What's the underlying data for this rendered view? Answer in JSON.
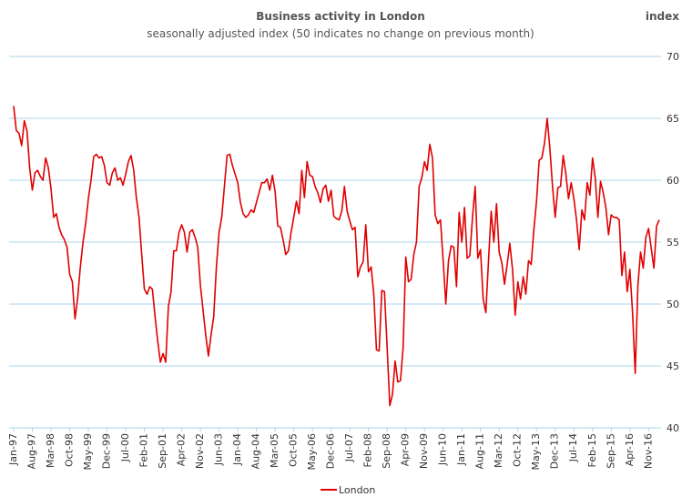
{
  "chart_data": {
    "type": "line",
    "title": "Business activity in London",
    "subtitle": "seasonally adjusted index (50 indicates no change on previous month)",
    "y_axis_label": "index",
    "categories": [
      "Jan-97",
      null,
      null,
      null,
      null,
      null,
      null,
      "Aug-97",
      null,
      null,
      null,
      null,
      null,
      null,
      "Mar-98",
      null,
      null,
      null,
      null,
      null,
      null,
      "Oct-98",
      null,
      null,
      null,
      null,
      null,
      null,
      "May-99",
      null,
      null,
      null,
      null,
      null,
      null,
      "Dec-99",
      null,
      null,
      null,
      null,
      null,
      null,
      "Jul-00",
      null,
      null,
      null,
      null,
      null,
      null,
      "Feb-01",
      null,
      null,
      null,
      null,
      null,
      null,
      "Sep-01",
      null,
      null,
      null,
      null,
      null,
      null,
      "Apr-02",
      null,
      null,
      null,
      null,
      null,
      null,
      "Nov-02",
      null,
      null,
      null,
      null,
      null,
      null,
      "Jun-03",
      null,
      null,
      null,
      null,
      null,
      null,
      "Jan-04",
      null,
      null,
      null,
      null,
      null,
      null,
      "Aug-04",
      null,
      null,
      null,
      null,
      null,
      null,
      "Mar-05",
      null,
      null,
      null,
      null,
      null,
      null,
      "Oct-05",
      null,
      null,
      null,
      null,
      null,
      null,
      "May-06",
      null,
      null,
      null,
      null,
      null,
      null,
      "Dec-06",
      null,
      null,
      null,
      null,
      null,
      null,
      "Jul-07",
      null,
      null,
      null,
      null,
      null,
      null,
      "Feb-08",
      null,
      null,
      null,
      null,
      null,
      null,
      "Sep-08",
      null,
      null,
      null,
      null,
      null,
      null,
      "Apr-09",
      null,
      null,
      null,
      null,
      null,
      null,
      "Nov-09",
      null,
      null,
      null,
      null,
      null,
      null,
      "Jun-10",
      null,
      null,
      null,
      null,
      null,
      null,
      "Jan-11",
      null,
      null,
      null,
      null,
      null,
      null,
      "Aug-11",
      null,
      null,
      null,
      null,
      null,
      null,
      "Mar-12",
      null,
      null,
      null,
      null,
      null,
      null,
      "Oct-12",
      null,
      null,
      null,
      null,
      null,
      null,
      "May-13",
      null,
      null,
      null,
      null,
      null,
      null,
      "Dec-13",
      null,
      null,
      null,
      null,
      null,
      null,
      "Jul-14",
      null,
      null,
      null,
      null,
      null,
      null,
      "Feb-15",
      null,
      null,
      null,
      null,
      null,
      null,
      "Sep-15",
      null,
      null,
      null,
      null,
      null,
      null,
      "Apr-16",
      null,
      null,
      null,
      null,
      null,
      null,
      "Nov-16",
      null,
      null,
      null,
      null
    ],
    "series": [
      {
        "name": "London",
        "color": "#e00000",
        "values": [
          66,
          64,
          63.8,
          62.8,
          64.8,
          64,
          61,
          59.2,
          60.6,
          60.8,
          60.3,
          60,
          61.8,
          61,
          59.3,
          57,
          57.3,
          56.2,
          55.6,
          55.2,
          54.6,
          52.4,
          51.8,
          48.8,
          50.5,
          53,
          55,
          56.5,
          58.5,
          60,
          61.9,
          62.1,
          61.8,
          61.9,
          61.2,
          59.8,
          59.6,
          60.6,
          61,
          60,
          60.2,
          59.6,
          60.5,
          61.5,
          62,
          60.8,
          58.6,
          57,
          54,
          51.2,
          50.8,
          51.4,
          51.2,
          49,
          47,
          45.3,
          46,
          45.3,
          49.8,
          51,
          54.3,
          54.3,
          55.8,
          56.4,
          55.8,
          54.2,
          55.8,
          56,
          55.4,
          54.6,
          51.5,
          49.5,
          47.5,
          45.8,
          47.5,
          49,
          53,
          55.8,
          57,
          59.5,
          62,
          62.1,
          61.2,
          60.5,
          59.8,
          58.2,
          57.3,
          57,
          57.2,
          57.6,
          57.4,
          58.2,
          59,
          59.8,
          59.8,
          60.1,
          59.2,
          60.4,
          59.1,
          56.3,
          56.2,
          55.2,
          54,
          54.3,
          55.8,
          57,
          58.3,
          57.3,
          60.8,
          58.6,
          61.5,
          60.4,
          60.3,
          59.5,
          59,
          58.2,
          59.3,
          59.6,
          58.3,
          59.2,
          57.1,
          56.9,
          56.8,
          57.5,
          59.5,
          57.5,
          56.7,
          56,
          56.2,
          52.2,
          53,
          53.4,
          56.4,
          52.6,
          53,
          50.8,
          46.3,
          46.2,
          51.1,
          51,
          46.5,
          41.8,
          42.7,
          45.4,
          43.7,
          43.8,
          46.5,
          53.8,
          51.8,
          52,
          54,
          55,
          59.5,
          60.2,
          61.5,
          60.8,
          62.9,
          61.8,
          57.2,
          56.5,
          56.8,
          53.5,
          50,
          53.5,
          54.7,
          54.6,
          51.4,
          57.4,
          55,
          57.8,
          53.7,
          53.9,
          57,
          59.5,
          53.7,
          54.4,
          50.4,
          49.3,
          53.5,
          57.5,
          55,
          58.1,
          54.2,
          53.3,
          51.6,
          53.2,
          54.9,
          52.8,
          49.1,
          51.8,
          50.4,
          52.2,
          50.8,
          53.5,
          53.2,
          56,
          58.3,
          61.6,
          61.8,
          63,
          65,
          62.6,
          59.5,
          57,
          59.4,
          59.5,
          62,
          60.5,
          58.5,
          59.8,
          58.5,
          56.8,
          54.4,
          57.6,
          56.8,
          59.8,
          58.8,
          61.8,
          60.2,
          57,
          59.9,
          59,
          57.8,
          55.6,
          57.2,
          57,
          57,
          56.8,
          52.3,
          54.2,
          51,
          52.8,
          49.3,
          44.4,
          51.5,
          54.2,
          52.9,
          55.4,
          56.1,
          54.5,
          52.9,
          56.3,
          56.8
        ]
      }
    ],
    "ylim": [
      40,
      70
    ],
    "yticks": [
      40,
      45,
      50,
      55,
      60,
      65,
      70
    ],
    "grid": true,
    "legend": "bottom"
  }
}
